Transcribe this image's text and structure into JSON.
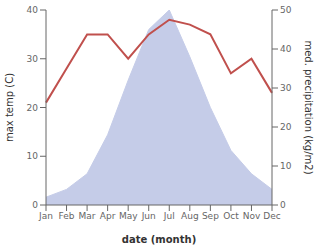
{
  "chart_data": {
    "type": "line",
    "categories": [
      "Jan",
      "Feb",
      "Mar",
      "Apr",
      "May",
      "Jun",
      "Jul",
      "Aug",
      "Sep",
      "Oct",
      "Nov",
      "Dec"
    ],
    "xlabel": "date (month)",
    "ylabel": "max temp (C)",
    "y2label": "med. precipitation (kg/m2)",
    "ylim": [
      0,
      40
    ],
    "yticks": [
      0,
      10,
      20,
      30,
      40
    ],
    "y2lim": [
      0,
      50
    ],
    "y2ticks": [
      0,
      10,
      20,
      30,
      40,
      50
    ],
    "grid": false,
    "series": [
      {
        "type": "area",
        "axis": "y2",
        "color": "#c5cce8",
        "values": [
          2,
          4,
          8,
          18,
          32,
          45,
          50,
          38,
          25,
          14,
          8,
          4
        ]
      },
      {
        "type": "line",
        "color": "#c0504d",
        "values": [
          21,
          28,
          35,
          35,
          30,
          35,
          38,
          37,
          35,
          27,
          30,
          23
        ]
      }
    ]
  }
}
